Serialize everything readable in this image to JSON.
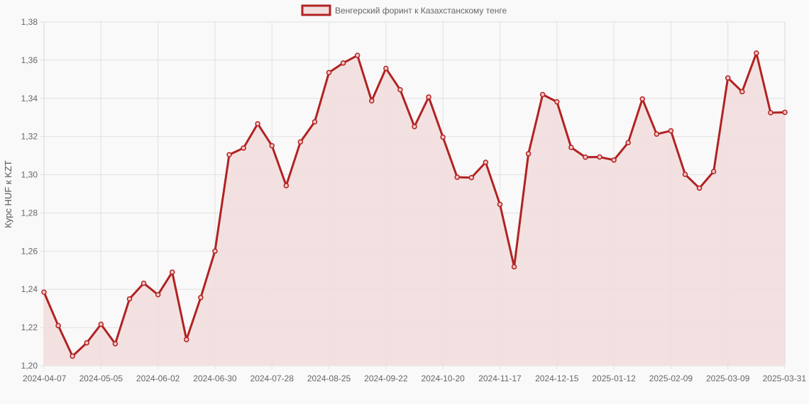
{
  "chart_data": {
    "type": "area",
    "ylabel": "Курс HUF к KZT",
    "legend": {
      "position": "top",
      "label": "Венгерский форинт к Казахстанскому тенге"
    },
    "colors": {
      "line": "#b22222",
      "fill": "#f2dede",
      "grid": "#e0e0e0",
      "background": "#f9f9f9"
    },
    "grid": true,
    "ylim": [
      1.2,
      1.38
    ],
    "y_ticks": [
      "1,20",
      "1,22",
      "1,24",
      "1,26",
      "1,28",
      "1,30",
      "1,32",
      "1,34",
      "1,36",
      "1,38"
    ],
    "x_tick_labels": [
      "2024-04-07",
      "2024-05-05",
      "2024-06-02",
      "2024-06-30",
      "2024-07-28",
      "2024-08-25",
      "2024-09-22",
      "2024-10-20",
      "2024-11-17",
      "2024-12-15",
      "2025-01-12",
      "2025-02-09",
      "2025-03-09",
      "2025-03-31"
    ],
    "x_tick_index": [
      0,
      4,
      8,
      12,
      16,
      20,
      24,
      28,
      32,
      36,
      40,
      44,
      48,
      52
    ],
    "series": [
      {
        "name": "Венгерский форинт к Казахстанскому тенге",
        "values": [
          1.2385,
          1.221,
          1.205,
          1.212,
          1.2217,
          1.2115,
          1.235,
          1.2432,
          1.2372,
          1.249,
          1.2137,
          1.2357,
          1.26,
          1.3105,
          1.314,
          1.3267,
          1.3152,
          1.2943,
          1.3172,
          1.3277,
          1.3535,
          1.3585,
          1.3625,
          1.3387,
          1.3557,
          1.3445,
          1.3252,
          1.3407,
          1.3197,
          1.2987,
          1.2985,
          1.3065,
          1.2845,
          1.2518,
          1.311,
          1.342,
          1.3382,
          1.3143,
          1.3092,
          1.3093,
          1.3077,
          1.3168,
          1.3397,
          1.3213,
          1.323,
          1.3002,
          1.293,
          1.3017,
          1.3507,
          1.3435,
          1.3637,
          1.3325,
          1.3327
        ]
      }
    ]
  }
}
